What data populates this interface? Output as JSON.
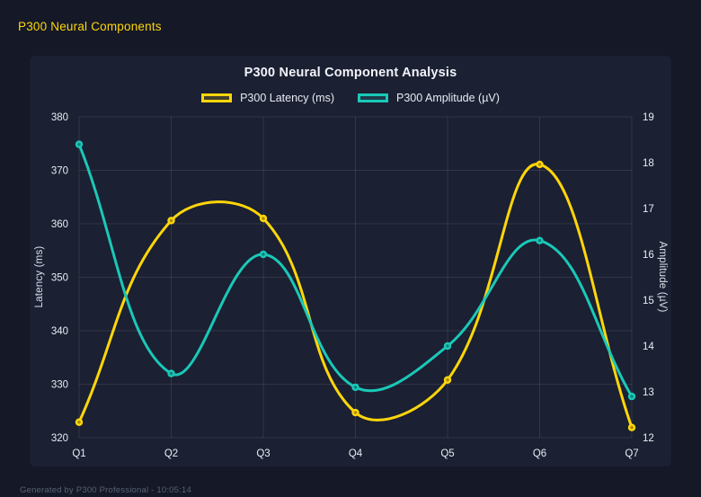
{
  "page": {
    "title": "P300 Neural Components",
    "footer": "Generated by P300 Professional - 10:05:14"
  },
  "colors": {
    "background": "#141827",
    "panel": "#1b2032",
    "latency_yellow": "#ffd60a",
    "amplitude_teal": "#1ac8b8",
    "grid": "rgba(255,255,255,0.10)",
    "tick_text": "#e9ecf4",
    "title_text": "#f2f4fa",
    "footer_text": "#596273"
  },
  "chart_data": {
    "type": "line",
    "title": "P300 Neural Component Analysis",
    "categories": [
      "Q1",
      "Q2",
      "Q3",
      "Q4",
      "Q5",
      "Q6",
      "Q7"
    ],
    "series": [
      {
        "name": "P300 Latency (ms)",
        "axis": "left",
        "color": "#ffd60a",
        "values": [
          322.9,
          360.6,
          361.0,
          324.7,
          330.8,
          371.1,
          321.9
        ]
      },
      {
        "name": "P300 Amplitude (µV)",
        "axis": "right",
        "color": "#1ac8b8",
        "values": [
          18.4,
          13.4,
          16.0,
          13.1,
          14.0,
          16.3,
          12.9
        ]
      }
    ],
    "left_axis": {
      "label": "Latency (ms)",
      "min": 320,
      "max": 380,
      "ticks": [
        320,
        330,
        340,
        350,
        360,
        370,
        380
      ]
    },
    "right_axis": {
      "label": "Amplitude (µV)",
      "min": 12,
      "max": 19,
      "ticks": [
        12,
        13,
        14,
        15,
        16,
        17,
        18,
        19
      ]
    },
    "grid": true,
    "legend_position": "top",
    "line_tension": 0.4,
    "smooth": true
  }
}
